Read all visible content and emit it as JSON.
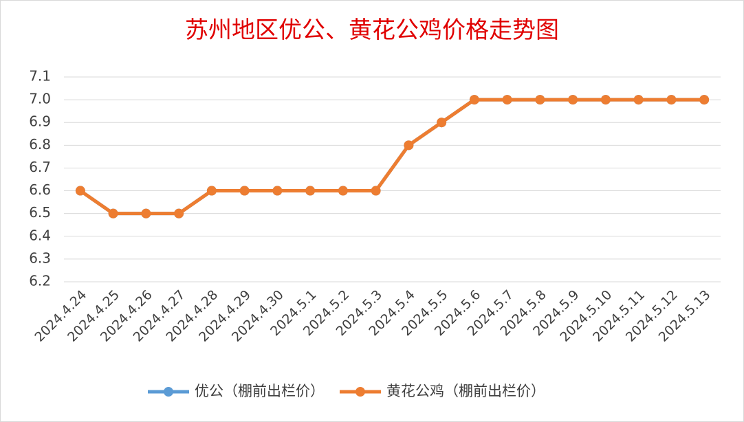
{
  "chart_data": {
    "type": "line",
    "title": "苏州地区优公、黄花公鸡价格走势图",
    "categories": [
      "2024.4.24",
      "2024.4.25",
      "2024.4.26",
      "2024.4.27",
      "2024.4.28",
      "2024.4.29",
      "2024.4.30",
      "2024.5.1",
      "2024.5.2",
      "2024.5.3",
      "2024.5.4",
      "2024.5.5",
      "2024.5.6",
      "2024.5.7",
      "2024.5.8",
      "2024.5.9",
      "2024.5.10",
      "2024.5.11",
      "2024.5.12",
      "2024.5.13"
    ],
    "series": [
      {
        "name": "优公（棚前出栏价）",
        "color": "#5b9bd5",
        "values": [
          6.6,
          6.5,
          6.5,
          6.5,
          6.6,
          6.6,
          6.6,
          6.6,
          6.6,
          6.6,
          6.8,
          6.9,
          7.0,
          7.0,
          7.0,
          7.0,
          7.0,
          7.0,
          7.0,
          7.0
        ]
      },
      {
        "name": "黄花公鸡（棚前出栏价）",
        "color": "#ed7d31",
        "values": [
          6.6,
          6.5,
          6.5,
          6.5,
          6.6,
          6.6,
          6.6,
          6.6,
          6.6,
          6.6,
          6.8,
          6.9,
          7.0,
          7.0,
          7.0,
          7.0,
          7.0,
          7.0,
          7.0,
          7.0
        ]
      }
    ],
    "ylim": [
      6.2,
      7.1
    ],
    "yticks": [
      6.2,
      6.3,
      6.4,
      6.5,
      6.6,
      6.7,
      6.8,
      6.9,
      {
        "value": 7,
        "label": "7.0"
      },
      7.1
    ],
    "grid": true,
    "legend": "bottom"
  }
}
